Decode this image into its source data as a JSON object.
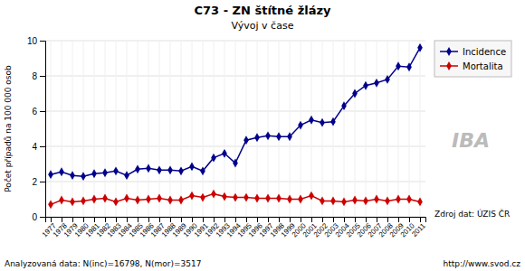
{
  "chart_data": {
    "type": "line",
    "title": "C73 - ZN štítné žlázy",
    "subtitle": "Vývoj v čase",
    "y_label": "Počet případů na 100 000 osob",
    "annotations": [
      "Zdroj dat: ÚZIS ČR",
      "Analyzovaná data: N(inc)=16798, N(mor)=3517",
      "http://www.svod.cz",
      "IBA"
    ],
    "categories": [
      "1977",
      "1978",
      "1979",
      "1980",
      "1981",
      "1982",
      "1983",
      "1984",
      "1985",
      "1986",
      "1987",
      "1988",
      "1989",
      "1990",
      "1991",
      "1992",
      "1993",
      "1994",
      "1995",
      "1996",
      "1997",
      "1998",
      "1999",
      "2000",
      "2001",
      "2002",
      "2003",
      "2004",
      "2005",
      "2006",
      "2007",
      "2008",
      "2009",
      "2010",
      "2011"
    ],
    "series": [
      {
        "name": "Incidence",
        "color": "#00008B",
        "marker": "diamond",
        "values": [
          2.4,
          2.55,
          2.35,
          2.3,
          2.45,
          2.5,
          2.6,
          2.35,
          2.7,
          2.75,
          2.65,
          2.65,
          2.6,
          2.85,
          2.6,
          3.35,
          3.6,
          3.05,
          4.35,
          4.5,
          4.6,
          4.55,
          4.55,
          5.2,
          5.5,
          5.35,
          5.4,
          6.3,
          7.0,
          7.45,
          7.6,
          7.8,
          8.55,
          8.5,
          9.6
        ]
      },
      {
        "name": "Mortalita",
        "color": "#CC0000",
        "marker": "diamond",
        "values": [
          0.7,
          0.95,
          0.85,
          0.9,
          1.0,
          1.05,
          0.85,
          1.05,
          0.95,
          1.0,
          1.05,
          0.95,
          0.95,
          1.2,
          1.1,
          1.3,
          1.15,
          1.1,
          1.1,
          1.05,
          1.05,
          1.05,
          1.0,
          1.0,
          1.2,
          0.9,
          0.9,
          0.85,
          0.95,
          0.9,
          1.0,
          0.9,
          1.0,
          1.0,
          0.85
        ]
      }
    ],
    "ylim": [
      0,
      10
    ],
    "yticks": [
      0,
      2,
      4,
      6,
      8,
      10
    ],
    "grid": true,
    "legend": "right"
  }
}
